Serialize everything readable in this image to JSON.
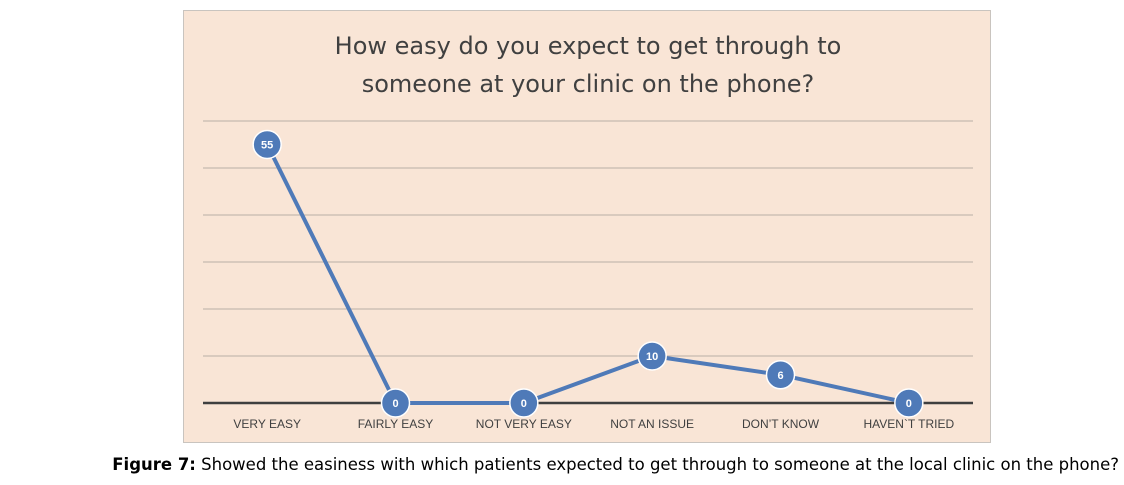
{
  "chart_data": {
    "type": "line",
    "title": "How easy do you expect to get through to someone at your clinic on the phone?",
    "title_lines": [
      "How easy do you expect to get through to",
      "someone at your clinic on the phone?"
    ],
    "categories": [
      "VERY EASY",
      "FAIRLY EASY",
      "NOT VERY EASY",
      "NOT AN ISSUE",
      "DON’T KNOW",
      "HAVEN`T TRIED"
    ],
    "series": [
      {
        "values": [
          55,
          0,
          0,
          10,
          6,
          0
        ]
      }
    ],
    "data_labels": [
      "55",
      "0",
      "0",
      "10",
      "6",
      "0"
    ],
    "ylim": [
      0,
      60
    ],
    "grid": true,
    "legend": "none",
    "colors": {
      "line": "#4f7ab8",
      "marker": "#4f7ab8",
      "marker_border": "#ffffff",
      "gridline": "#b9aea6",
      "axis": "#3f3f3f",
      "background": "#f9e5d6",
      "tick_label": "#404040"
    }
  },
  "caption": {
    "label": "Figure 7:",
    "text": " Showed the easiness with which patients expected to get through to someone at the local clinic on the phone?"
  }
}
